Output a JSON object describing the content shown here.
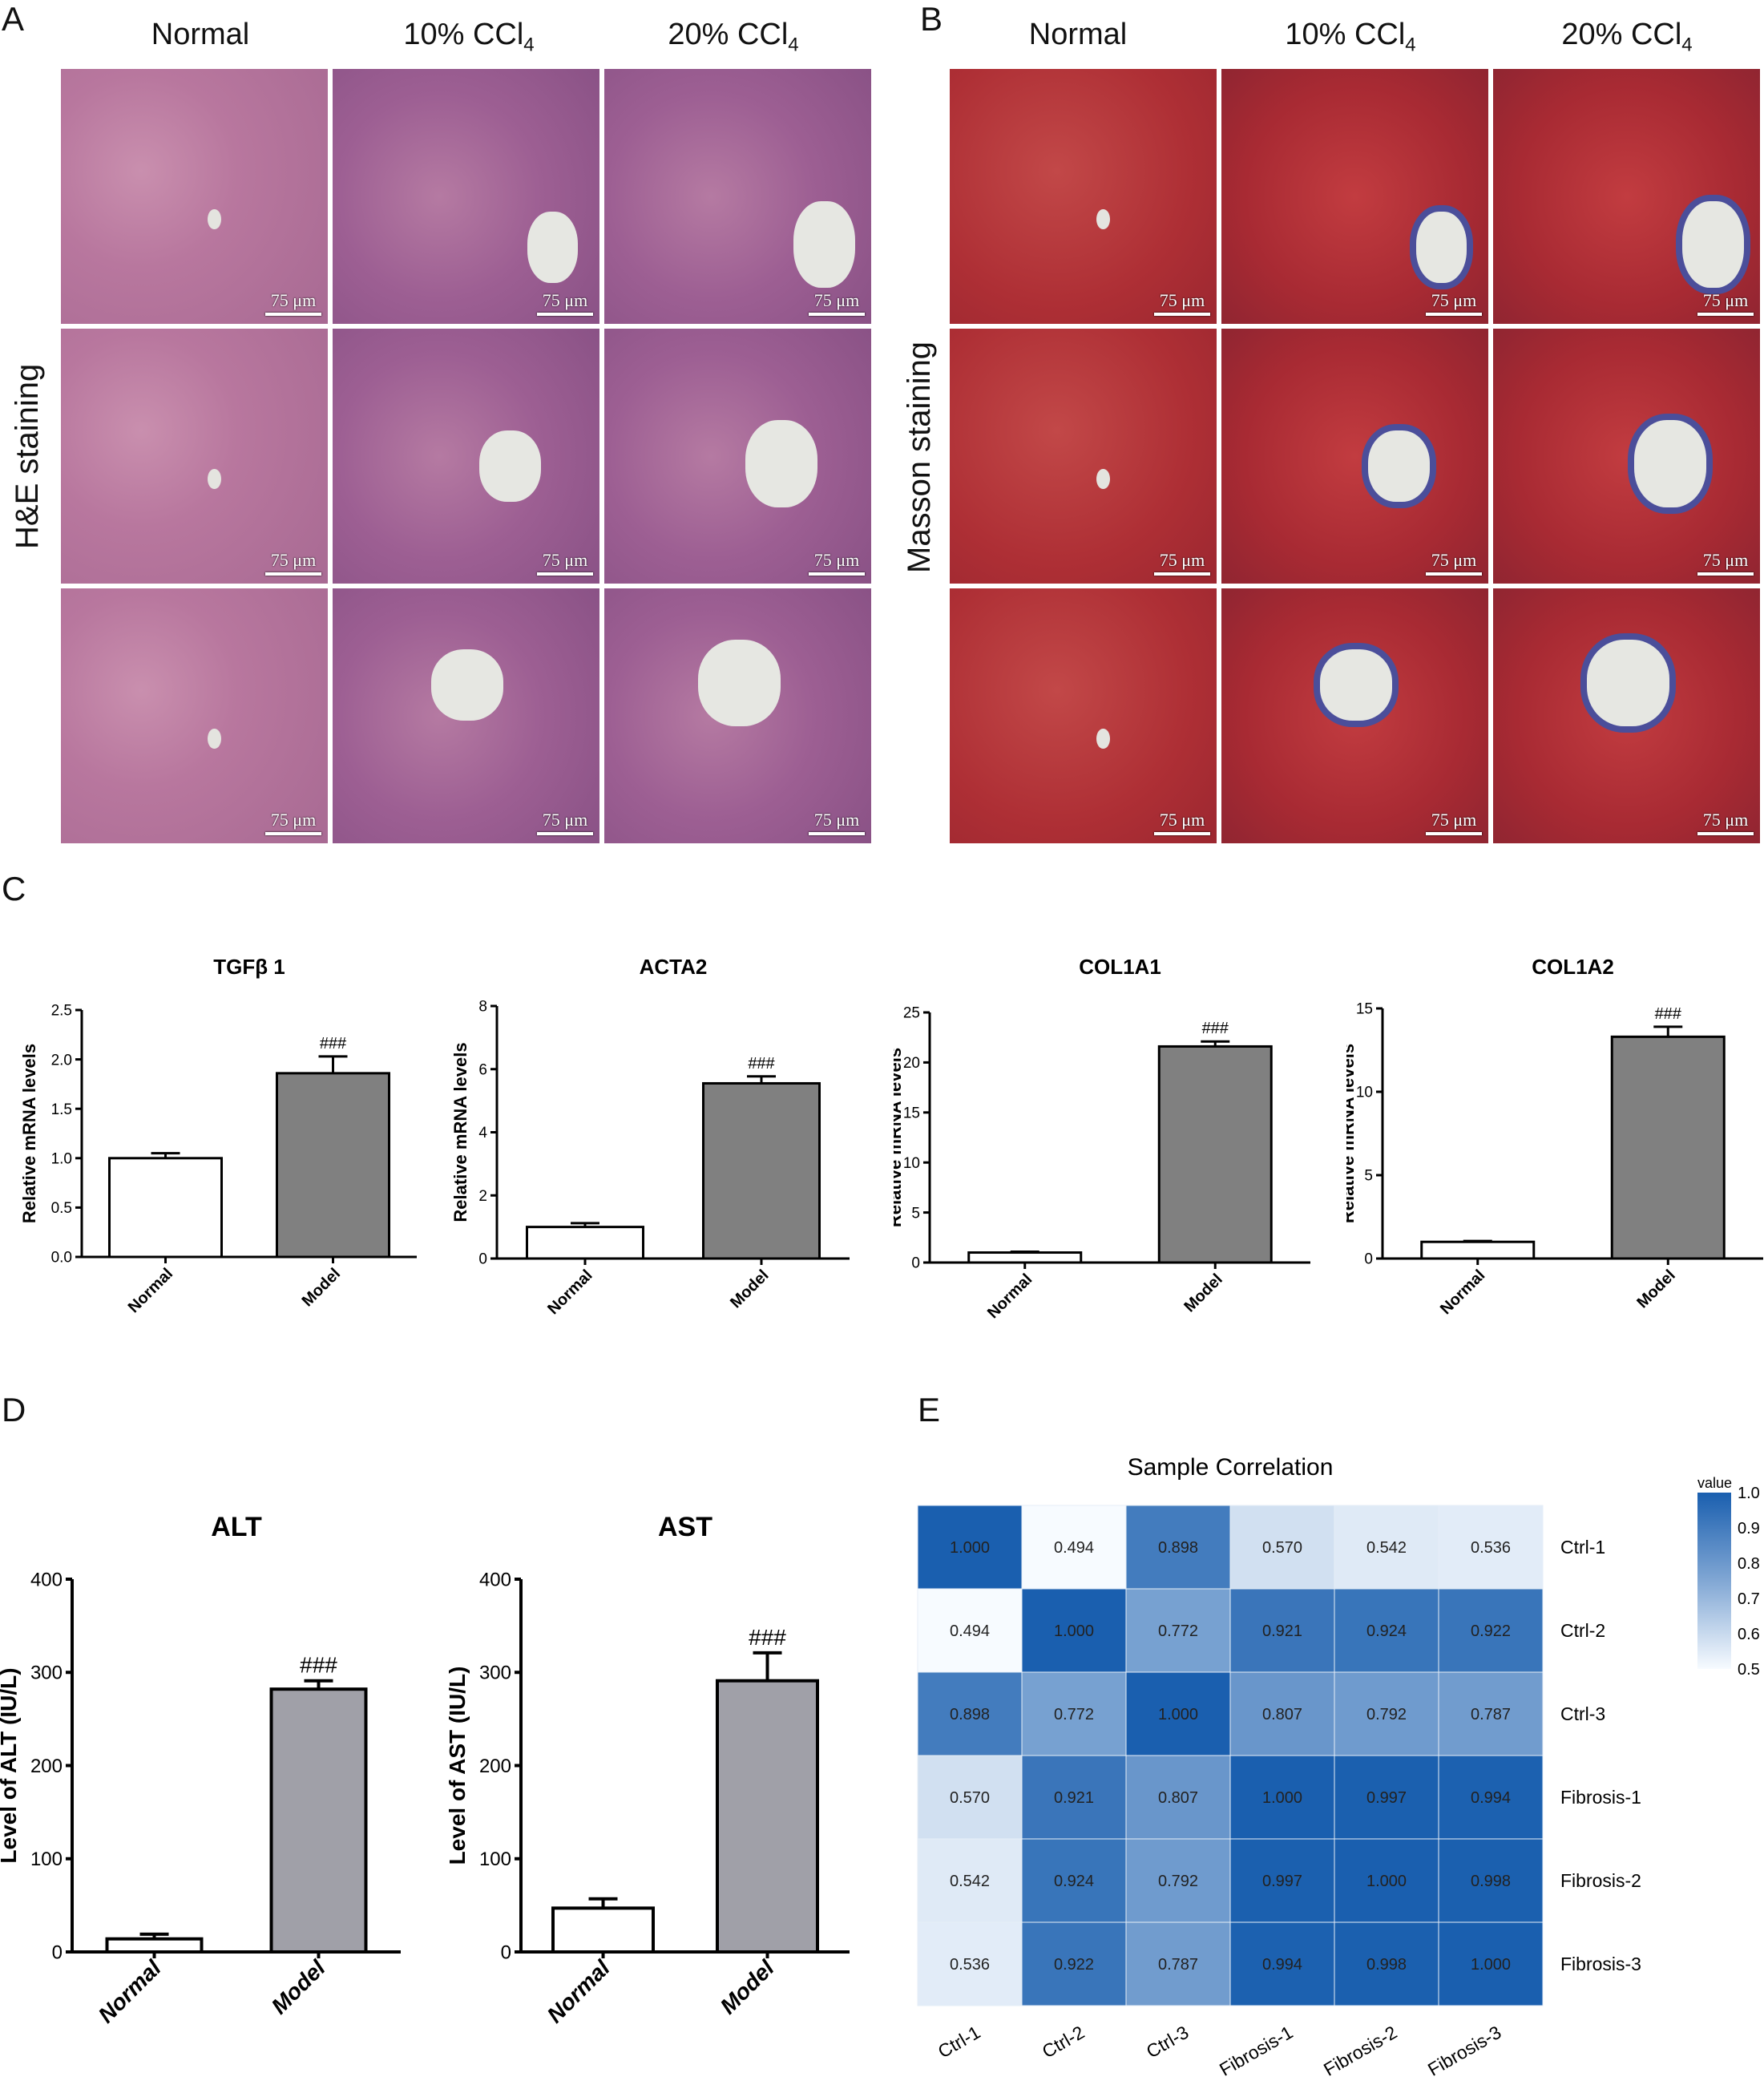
{
  "panels": {
    "A": "A",
    "B": "B",
    "C": "C",
    "D": "D",
    "E": "E"
  },
  "histology": {
    "columns": [
      "Normal",
      "10% CCl",
      "20% CCl"
    ],
    "columns_sub": [
      "",
      "4",
      "4"
    ],
    "scale_label": "75 μm",
    "he_label": "H&E staining",
    "masson_label": "Masson staining"
  },
  "chart_data": [
    {
      "type": "bar",
      "title": "TGFβ 1",
      "ylabel": "Relative mRNA levels",
      "categories": [
        "Normal",
        "Model"
      ],
      "values": [
        1.0,
        1.86
      ],
      "errors": [
        0.05,
        0.17
      ],
      "ylim": [
        0,
        2.5
      ],
      "yticks": [
        0.0,
        0.5,
        1.0,
        1.5,
        2.0,
        2.5
      ],
      "ytick_labels": [
        "0.0",
        "0.5",
        "1.0",
        "1.5",
        "2.0",
        "2.5"
      ],
      "annotation": "###"
    },
    {
      "type": "bar",
      "title": "ACTA2",
      "ylabel": "Relative mRNA levels",
      "categories": [
        "Normal",
        "Model"
      ],
      "values": [
        1.0,
        5.55
      ],
      "errors": [
        0.12,
        0.22
      ],
      "ylim": [
        0,
        8
      ],
      "yticks": [
        0,
        2,
        4,
        6,
        8
      ],
      "ytick_labels": [
        "0",
        "2",
        "4",
        "6",
        "8"
      ],
      "annotation": "###"
    },
    {
      "type": "bar",
      "title": "COL1A1",
      "ylabel": "Relative mRNA levels",
      "categories": [
        "Normal",
        "Model"
      ],
      "values": [
        1.0,
        21.6
      ],
      "errors": [
        0.08,
        0.5
      ],
      "ylim": [
        0,
        25
      ],
      "yticks": [
        0,
        5,
        10,
        15,
        20,
        25
      ],
      "ytick_labels": [
        "0",
        "5",
        "10",
        "15",
        "20",
        "25"
      ],
      "annotation": "###"
    },
    {
      "type": "bar",
      "title": "COL1A2",
      "ylabel": "Relative mRNA levels",
      "categories": [
        "Normal",
        "Model"
      ],
      "values": [
        1.0,
        13.3
      ],
      "errors": [
        0.05,
        0.6
      ],
      "ylim": [
        0,
        15
      ],
      "yticks": [
        0,
        5,
        10,
        15
      ],
      "ytick_labels": [
        "0",
        "5",
        "10",
        "15"
      ],
      "annotation": "###"
    },
    {
      "type": "bar",
      "title": "ALT",
      "ylabel": "Level of ALT (IU/L)",
      "categories": [
        "Normal",
        "Model"
      ],
      "values": [
        14,
        282
      ],
      "errors": [
        5,
        9
      ],
      "ylim": [
        0,
        400
      ],
      "yticks": [
        0,
        100,
        200,
        300,
        400
      ],
      "ytick_labels": [
        "0",
        "100",
        "200",
        "300",
        "400"
      ],
      "annotation": "###"
    },
    {
      "type": "bar",
      "title": "AST",
      "ylabel": "Level of AST (IU/L)",
      "categories": [
        "Normal",
        "Model"
      ],
      "values": [
        47,
        291
      ],
      "errors": [
        10,
        30
      ],
      "ylim": [
        0,
        400
      ],
      "yticks": [
        0,
        100,
        200,
        300,
        400
      ],
      "ytick_labels": [
        "0",
        "100",
        "200",
        "300",
        "400"
      ],
      "annotation": "###"
    },
    {
      "type": "heatmap",
      "title": "Sample Correlation",
      "rows": [
        "Ctrl-1",
        "Ctrl-2",
        "Ctrl-3",
        "Fibrosis-1",
        "Fibrosis-2",
        "Fibrosis-3"
      ],
      "cols": [
        "Ctrl-1",
        "Ctrl-2",
        "Ctrl-3",
        "Fibrosis-1",
        "Fibrosis-2",
        "Fibrosis-3"
      ],
      "values": [
        [
          1.0,
          0.494,
          0.898,
          0.57,
          0.542,
          0.536
        ],
        [
          0.494,
          1.0,
          0.772,
          0.921,
          0.924,
          0.922
        ],
        [
          0.898,
          0.772,
          1.0,
          0.807,
          0.792,
          0.787
        ],
        [
          0.57,
          0.921,
          0.807,
          1.0,
          0.997,
          0.994
        ],
        [
          0.542,
          0.924,
          0.792,
          0.997,
          1.0,
          0.998
        ],
        [
          0.536,
          0.922,
          0.787,
          0.994,
          0.998,
          1.0
        ]
      ],
      "legend_title": "value",
      "legend_ticks": [
        "1.0",
        "0.9",
        "0.8",
        "0.7",
        "0.6",
        "0.5"
      ],
      "legend_range": [
        0.5,
        1.0
      ]
    }
  ]
}
